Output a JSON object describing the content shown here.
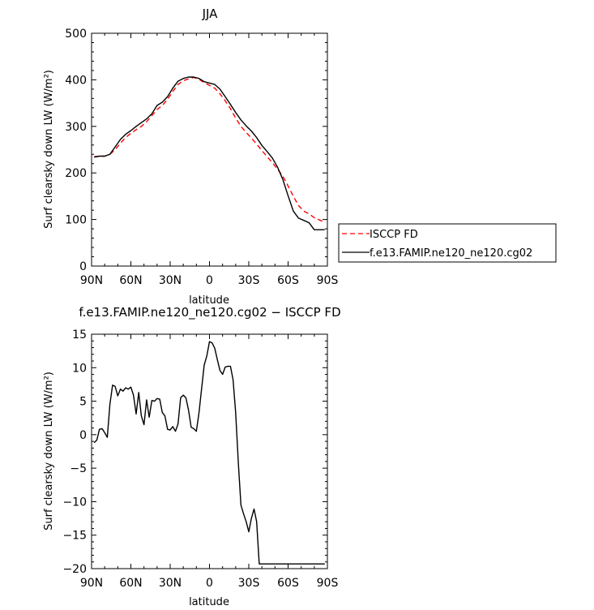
{
  "chart_data": [
    {
      "type": "line",
      "title": "JJA",
      "xlabel": "latitude",
      "ylabel": "Surf clearsky down LW (W/m²)",
      "xlim": [
        -90,
        90
      ],
      "ylim": [
        0,
        500
      ],
      "xticks": [
        -90,
        -60,
        -30,
        0,
        30,
        60,
        90
      ],
      "xtick_labels": [
        "90N",
        "60N",
        "30N",
        "0",
        "30S",
        "60S",
        "90S"
      ],
      "yticks": [
        0,
        100,
        200,
        300,
        400,
        500
      ],
      "ytick_labels": [
        "0",
        "100",
        "200",
        "300",
        "400",
        "500"
      ],
      "legend": "right, outside",
      "series": [
        {
          "name": "ISCCP FD",
          "color": "#ff0000",
          "style": "dashed",
          "x": [
            -88,
            -84,
            -80,
            -76,
            -72,
            -68,
            -64,
            -60,
            -56,
            -52,
            -48,
            -44,
            -40,
            -36,
            -32,
            -28,
            -24,
            -20,
            -16,
            -12,
            -8,
            -4,
            0,
            4,
            8,
            12,
            16,
            20,
            24,
            28,
            32,
            36,
            40,
            44,
            48,
            52,
            56,
            60,
            64,
            68,
            72,
            76,
            80,
            84,
            88
          ],
          "y": [
            235,
            236,
            236,
            240,
            250,
            264,
            276,
            285,
            293,
            300,
            310,
            323,
            336,
            345,
            358,
            375,
            390,
            398,
            402,
            405,
            401,
            394,
            388,
            382,
            370,
            355,
            338,
            318,
            300,
            287,
            275,
            262,
            248,
            235,
            222,
            208,
            193,
            172,
            150,
            130,
            118,
            112,
            104,
            99,
            94
          ]
        },
        {
          "name": "f.e13.FAMIP.ne120_ne120.cg02",
          "color": "#000000",
          "style": "solid",
          "x": [
            -88,
            -84,
            -80,
            -76,
            -72,
            -68,
            -64,
            -60,
            -56,
            -52,
            -48,
            -44,
            -40,
            -36,
            -32,
            -28,
            -24,
            -20,
            -16,
            -12,
            -8,
            -4,
            0,
            4,
            8,
            12,
            16,
            20,
            24,
            28,
            32,
            36,
            40,
            44,
            48,
            52,
            56,
            60,
            64,
            68,
            72,
            76,
            80,
            84,
            88
          ],
          "y": [
            234,
            236,
            236,
            240,
            256,
            272,
            283,
            291,
            300,
            308,
            316,
            327,
            345,
            352,
            364,
            382,
            397,
            403,
            406,
            406,
            403,
            396,
            393,
            390,
            380,
            364,
            347,
            330,
            314,
            301,
            290,
            276,
            259,
            246,
            232,
            212,
            186,
            151,
            118,
            103,
            98,
            93,
            78,
            78,
            78
          ]
        }
      ]
    },
    {
      "type": "line",
      "title": "f.e13.FAMIP.ne120_ne120.cg02 − ISCCP FD",
      "xlabel": "latitude",
      "ylabel": "Surf clearsky down LW (W/m²)",
      "xlim": [
        -90,
        90
      ],
      "ylim": [
        -20,
        15
      ],
      "xticks": [
        -90,
        -60,
        -30,
        0,
        30,
        60,
        90
      ],
      "xtick_labels": [
        "90N",
        "60N",
        "30N",
        "0",
        "30S",
        "60S",
        "90S"
      ],
      "yticks": [
        -20,
        -15,
        -10,
        -5,
        0,
        5,
        10,
        15
      ],
      "ytick_labels": [
        "−20",
        "−15",
        "−10",
        "−5",
        "0",
        "5",
        "10",
        "15"
      ],
      "series": [
        {
          "color": "#000000",
          "style": "solid",
          "x": [
            -88,
            -86,
            -84,
            -82,
            -80,
            -78,
            -76,
            -74,
            -72,
            -70,
            -68,
            -66,
            -64,
            -62,
            -60,
            -58,
            -56,
            -54,
            -52,
            -50,
            -48,
            -46,
            -44,
            -42,
            -40,
            -38,
            -36,
            -34,
            -32,
            -30,
            -28,
            -26,
            -24,
            -22,
            -20,
            -18,
            -16,
            -14,
            -12,
            -10,
            -8,
            -6,
            -4,
            -2,
            0,
            2,
            4,
            6,
            8,
            10,
            12,
            14,
            16,
            18,
            20,
            22,
            24,
            26,
            28,
            30,
            32,
            34,
            36,
            38,
            40,
            42,
            44,
            46,
            48,
            50,
            52,
            54,
            56,
            58,
            60,
            62,
            64,
            66,
            68,
            70,
            72,
            74,
            76,
            78,
            80,
            82,
            84,
            86,
            88
          ],
          "y": [
            -1.2,
            -0.8,
            0.8,
            0.9,
            0.3,
            -0.4,
            4.5,
            7.4,
            7.2,
            5.8,
            6.8,
            6.5,
            7,
            6.8,
            7.1,
            5.9,
            3.1,
            6.3,
            2.8,
            1.5,
            5.2,
            2.6,
            5.1,
            5,
            5.4,
            5.3,
            3.3,
            2.8,
            0.8,
            0.7,
            1.2,
            0.5,
            1.6,
            5.5,
            5.9,
            5.5,
            3.7,
            1.1,
            0.9,
            0.5,
            3.3,
            6.9,
            10.4,
            11.8,
            13.9,
            13.7,
            12.9,
            11.2,
            9.6,
            9,
            10.1,
            10.2,
            10.2,
            8.2,
            3.3,
            -4.2,
            -10.5,
            -11.8,
            -13,
            -14.5,
            -12.5,
            -11.1,
            -13,
            -19.3,
            -19.3,
            -19.3,
            -19.3,
            -19.3,
            -19.3,
            -19.3,
            -19.3,
            -19.3,
            -19.3,
            -19.3,
            -19.3,
            -19.3,
            -19.3,
            -19.3,
            -19.3,
            -19.3,
            -19.3,
            -19.3,
            -19.3,
            -19.3,
            -19.3,
            -19.3,
            -19.3,
            -19.3,
            -19.3
          ]
        }
      ]
    }
  ]
}
